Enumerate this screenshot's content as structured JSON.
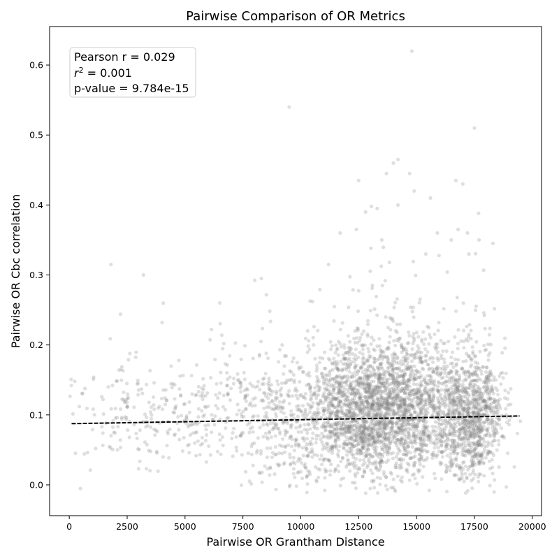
{
  "chart_data": {
    "type": "scatter",
    "title": "Pairwise Comparison of OR Metrics",
    "xlabel": "Pairwise OR Grantham Distance",
    "ylabel": "Pairwise OR Cbc correlation",
    "xlim": [
      -850,
      20400
    ],
    "ylim": [
      -0.044,
      0.655
    ],
    "xticks": [
      0,
      2500,
      5000,
      7500,
      10000,
      12500,
      15000,
      17500,
      20000
    ],
    "xtick_labels": [
      "0",
      "2500",
      "5000",
      "7500",
      "10000",
      "12500",
      "15000",
      "17500",
      "20000"
    ],
    "yticks": [
      0.0,
      0.1,
      0.2,
      0.3,
      0.4,
      0.5,
      0.6
    ],
    "ytick_labels": [
      "0.0",
      "0.1",
      "0.2",
      "0.3",
      "0.4",
      "0.5",
      "0.6"
    ],
    "grid": false,
    "point_color": "#808080",
    "point_opacity": 0.25,
    "fit_line": {
      "x": [
        100,
        19450
      ],
      "y": [
        0.0875,
        0.0985
      ],
      "color": "#000000",
      "style": "dashed"
    },
    "clusters": [
      {
        "cx": 14200,
        "cy": 0.105,
        "sx": 1600,
        "sy": 0.05,
        "n": 1900
      },
      {
        "cx": 12300,
        "cy": 0.1,
        "sx": 1300,
        "sy": 0.045,
        "n": 900
      },
      {
        "cx": 17400,
        "cy": 0.095,
        "sx": 700,
        "sy": 0.045,
        "n": 900
      },
      {
        "cx": 9500,
        "cy": 0.1,
        "sx": 1200,
        "sy": 0.05,
        "n": 350
      },
      {
        "cx": 6000,
        "cy": 0.1,
        "sx": 1800,
        "sy": 0.045,
        "n": 200
      },
      {
        "cx": 2500,
        "cy": 0.1,
        "sx": 1500,
        "sy": 0.04,
        "n": 160
      }
    ],
    "outliers": [
      [
        14800,
        0.62
      ],
      [
        9500,
        0.54
      ],
      [
        17500,
        0.51
      ],
      [
        14200,
        0.465
      ],
      [
        14000,
        0.46
      ],
      [
        13700,
        0.445
      ],
      [
        14700,
        0.445
      ],
      [
        12500,
        0.435
      ],
      [
        16700,
        0.435
      ],
      [
        17000,
        0.43
      ],
      [
        14900,
        0.42
      ],
      [
        15600,
        0.41
      ],
      [
        13300,
        0.395
      ],
      [
        14200,
        0.4
      ],
      [
        12800,
        0.39
      ],
      [
        11700,
        0.36
      ],
      [
        12400,
        0.365
      ],
      [
        17200,
        0.36
      ],
      [
        16800,
        0.365
      ],
      [
        1800,
        0.315
      ],
      [
        3200,
        0.3
      ],
      [
        8300,
        0.295
      ],
      [
        11200,
        0.315
      ],
      [
        18300,
        0.345
      ],
      [
        16500,
        0.35
      ],
      [
        15900,
        0.36
      ],
      [
        13500,
        0.35
      ],
      [
        6500,
        0.26
      ],
      [
        17700,
        0.35
      ],
      [
        15400,
        0.33
      ]
    ],
    "annotations": {
      "pearson": "Pearson r = 0.029",
      "r2_base": "r",
      "r2_exp": "2",
      "r2_value": " = 0.001",
      "pvalue": "p-value = 9.784e-15"
    }
  }
}
